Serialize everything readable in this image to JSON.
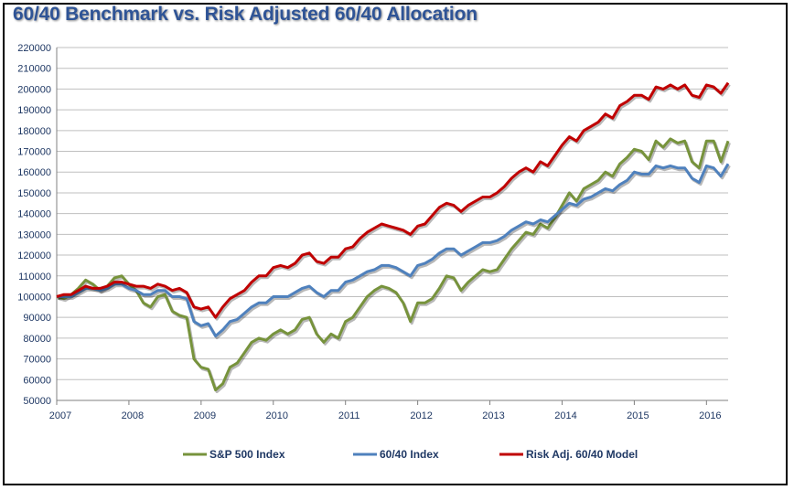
{
  "chart_data": {
    "type": "line",
    "title": "60/40 Benchmark vs. Risk Adjusted 60/40 Allocation",
    "xlabel": "",
    "ylabel": "",
    "xlim": [
      2007,
      2016.3
    ],
    "ylim": [
      50000,
      220000
    ],
    "yticks": [
      "50000",
      "60000",
      "70000",
      "80000",
      "90000",
      "100000",
      "110000",
      "120000",
      "130000",
      "140000",
      "150000",
      "160000",
      "170000",
      "180000",
      "190000",
      "200000",
      "210000",
      "220000"
    ],
    "xticks": [
      "2007",
      "2008",
      "2009",
      "2010",
      "2011",
      "2012",
      "2013",
      "2014",
      "2015",
      "2016"
    ],
    "grid": "horizontal",
    "legend": "bottom",
    "colors": [
      "#77933c",
      "#4f81bd",
      "#c00000"
    ],
    "series": [
      {
        "name": "S&P 500 Index",
        "x": [
          2007.0,
          2007.1,
          2007.2,
          2007.3,
          2007.4,
          2007.5,
          2007.6,
          2007.7,
          2007.8,
          2007.9,
          2008.0,
          2008.1,
          2008.2,
          2008.3,
          2008.4,
          2008.5,
          2008.6,
          2008.7,
          2008.8,
          2008.9,
          2009.0,
          2009.1,
          2009.2,
          2009.3,
          2009.4,
          2009.5,
          2009.6,
          2009.7,
          2009.8,
          2009.9,
          2010.0,
          2010.1,
          2010.2,
          2010.3,
          2010.4,
          2010.5,
          2010.6,
          2010.7,
          2010.8,
          2010.9,
          2011.0,
          2011.1,
          2011.2,
          2011.3,
          2011.4,
          2011.5,
          2011.6,
          2011.7,
          2011.8,
          2011.9,
          2012.0,
          2012.1,
          2012.2,
          2012.3,
          2012.4,
          2012.5,
          2012.6,
          2012.7,
          2012.8,
          2012.9,
          2013.0,
          2013.1,
          2013.2,
          2013.3,
          2013.4,
          2013.5,
          2013.6,
          2013.7,
          2013.8,
          2013.9,
          2014.0,
          2014.1,
          2014.2,
          2014.3,
          2014.4,
          2014.5,
          2014.6,
          2014.7,
          2014.8,
          2014.9,
          2015.0,
          2015.1,
          2015.2,
          2015.3,
          2015.4,
          2015.5,
          2015.6,
          2015.7,
          2015.8,
          2015.9,
          2016.0,
          2016.1,
          2016.2,
          2016.3
        ],
        "values": [
          100000,
          99000,
          101000,
          104000,
          108000,
          106000,
          103000,
          105000,
          109000,
          110000,
          106000,
          103000,
          97000,
          95000,
          100000,
          101000,
          93000,
          91000,
          90000,
          70000,
          66000,
          65000,
          55000,
          58000,
          66000,
          68000,
          73000,
          78000,
          80000,
          79000,
          82000,
          84000,
          82000,
          84000,
          89000,
          90000,
          82000,
          78000,
          82000,
          80000,
          88000,
          90000,
          95000,
          100000,
          103000,
          105000,
          104000,
          102000,
          97000,
          88000,
          97000,
          97000,
          99000,
          104000,
          110000,
          109000,
          103000,
          107000,
          110000,
          113000,
          112000,
          113000,
          118000,
          123000,
          127000,
          131000,
          130000,
          135000,
          133000,
          138000,
          144000,
          150000,
          146000,
          152000,
          154000,
          156000,
          160000,
          158000,
          164000,
          167000,
          171000,
          170000,
          166000,
          175000,
          172000,
          176000,
          174000,
          175000,
          165000,
          162000,
          175000,
          175000,
          165000,
          175000
        ]
      },
      {
        "name": "60/40 Index",
        "x": [
          2007.0,
          2007.1,
          2007.2,
          2007.3,
          2007.4,
          2007.5,
          2007.6,
          2007.7,
          2007.8,
          2007.9,
          2008.0,
          2008.1,
          2008.2,
          2008.3,
          2008.4,
          2008.5,
          2008.6,
          2008.7,
          2008.8,
          2008.9,
          2009.0,
          2009.1,
          2009.2,
          2009.3,
          2009.4,
          2009.5,
          2009.6,
          2009.7,
          2009.8,
          2009.9,
          2010.0,
          2010.1,
          2010.2,
          2010.3,
          2010.4,
          2010.5,
          2010.6,
          2010.7,
          2010.8,
          2010.9,
          2011.0,
          2011.1,
          2011.2,
          2011.3,
          2011.4,
          2011.5,
          2011.6,
          2011.7,
          2011.8,
          2011.9,
          2012.0,
          2012.1,
          2012.2,
          2012.3,
          2012.4,
          2012.5,
          2012.6,
          2012.7,
          2012.8,
          2012.9,
          2013.0,
          2013.1,
          2013.2,
          2013.3,
          2013.4,
          2013.5,
          2013.6,
          2013.7,
          2013.8,
          2013.9,
          2014.0,
          2014.1,
          2014.2,
          2014.3,
          2014.4,
          2014.5,
          2014.6,
          2014.7,
          2014.8,
          2014.9,
          2015.0,
          2015.1,
          2015.2,
          2015.3,
          2015.4,
          2015.5,
          2015.6,
          2015.7,
          2015.8,
          2015.9,
          2016.0,
          2016.1,
          2016.2,
          2016.3
        ],
        "values": [
          100000,
          100000,
          100000,
          102000,
          104000,
          104000,
          103000,
          104000,
          106000,
          106000,
          104000,
          103000,
          101000,
          101000,
          103000,
          103000,
          100000,
          100000,
          99000,
          88000,
          86000,
          87000,
          81000,
          84000,
          88000,
          89000,
          92000,
          95000,
          97000,
          97000,
          100000,
          100000,
          100000,
          102000,
          104000,
          105000,
          102000,
          100000,
          103000,
          103000,
          107000,
          108000,
          110000,
          112000,
          113000,
          115000,
          115000,
          114000,
          112000,
          110000,
          115000,
          116000,
          118000,
          121000,
          123000,
          123000,
          120000,
          122000,
          124000,
          126000,
          126000,
          127000,
          129000,
          132000,
          134000,
          136000,
          135000,
          137000,
          136000,
          139000,
          142000,
          145000,
          144000,
          147000,
          148000,
          150000,
          152000,
          151000,
          154000,
          156000,
          160000,
          159000,
          159000,
          163000,
          162000,
          163000,
          162000,
          162000,
          157000,
          155000,
          163000,
          162000,
          158000,
          164000
        ]
      },
      {
        "name": "Risk Adj. 60/40 Model",
        "x": [
          2007.0,
          2007.1,
          2007.2,
          2007.3,
          2007.4,
          2007.5,
          2007.6,
          2007.7,
          2007.8,
          2007.9,
          2008.0,
          2008.1,
          2008.2,
          2008.3,
          2008.4,
          2008.5,
          2008.6,
          2008.7,
          2008.8,
          2008.9,
          2009.0,
          2009.1,
          2009.2,
          2009.3,
          2009.4,
          2009.5,
          2009.6,
          2009.7,
          2009.8,
          2009.9,
          2010.0,
          2010.1,
          2010.2,
          2010.3,
          2010.4,
          2010.5,
          2010.6,
          2010.7,
          2010.8,
          2010.9,
          2011.0,
          2011.1,
          2011.2,
          2011.3,
          2011.4,
          2011.5,
          2011.6,
          2011.7,
          2011.8,
          2011.9,
          2012.0,
          2012.1,
          2012.2,
          2012.3,
          2012.4,
          2012.5,
          2012.6,
          2012.7,
          2012.8,
          2012.9,
          2013.0,
          2013.1,
          2013.2,
          2013.3,
          2013.4,
          2013.5,
          2013.6,
          2013.7,
          2013.8,
          2013.9,
          2014.0,
          2014.1,
          2014.2,
          2014.3,
          2014.4,
          2014.5,
          2014.6,
          2014.7,
          2014.8,
          2014.9,
          2015.0,
          2015.1,
          2015.2,
          2015.3,
          2015.4,
          2015.5,
          2015.6,
          2015.7,
          2015.8,
          2015.9,
          2016.0,
          2016.1,
          2016.2,
          2016.3
        ],
        "values": [
          100000,
          101000,
          101000,
          103000,
          105000,
          104000,
          104000,
          105000,
          107000,
          107000,
          106000,
          105000,
          105000,
          104000,
          106000,
          105000,
          103000,
          104000,
          102000,
          95000,
          94000,
          95000,
          90000,
          95000,
          99000,
          101000,
          103000,
          107000,
          110000,
          110000,
          114000,
          115000,
          114000,
          116000,
          120000,
          121000,
          117000,
          116000,
          119000,
          119000,
          123000,
          124000,
          128000,
          131000,
          133000,
          135000,
          134000,
          133000,
          132000,
          130000,
          134000,
          135000,
          139000,
          143000,
          145000,
          144000,
          141000,
          144000,
          146000,
          148000,
          148000,
          150000,
          153000,
          157000,
          160000,
          162000,
          160000,
          165000,
          163000,
          168000,
          173000,
          177000,
          175000,
          180000,
          182000,
          184000,
          188000,
          186000,
          192000,
          194000,
          197000,
          197000,
          195000,
          201000,
          200000,
          202000,
          200000,
          202000,
          197000,
          196000,
          202000,
          201000,
          198000,
          203000
        ]
      }
    ]
  }
}
